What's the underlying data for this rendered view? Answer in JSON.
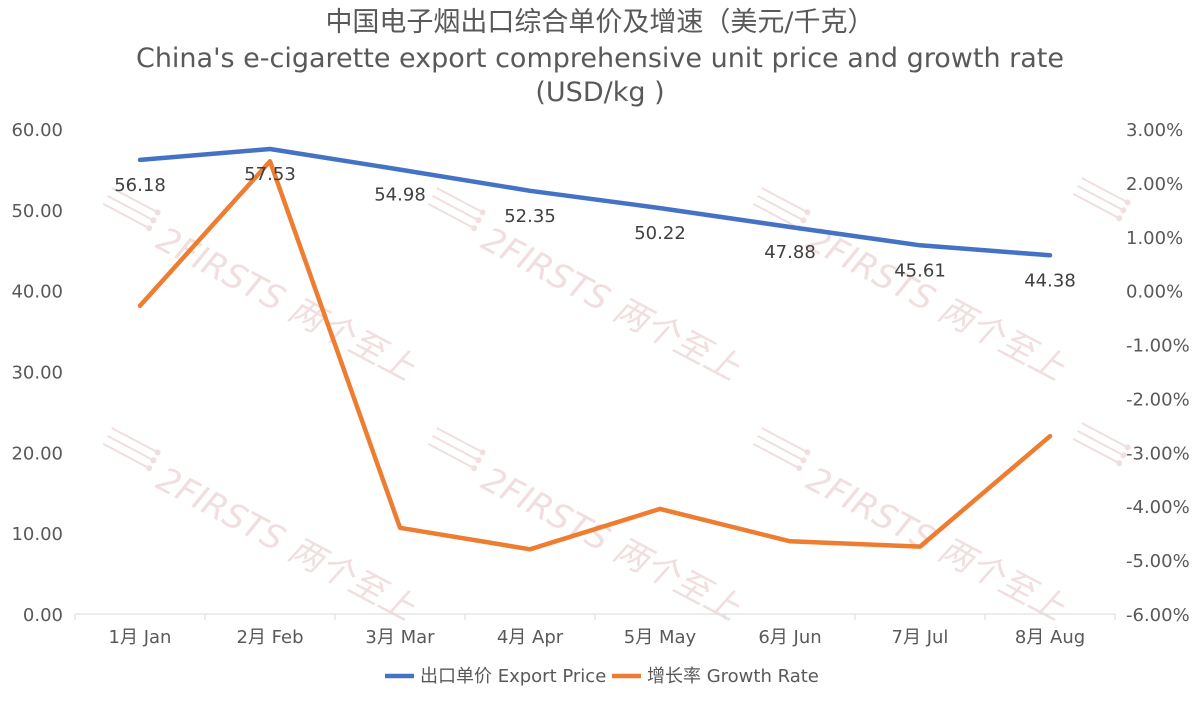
{
  "chart_data": {
    "type": "line",
    "title_cn": "中国电子烟出口综合单价及增速（美元/千克）",
    "title_en": "China's e-cigarette export comprehensive unit price and growth rate",
    "title_unit": "(USD/kg )",
    "categories": [
      "1月 Jan",
      "2月 Feb",
      "3月 Mar",
      "4月 Apr",
      "5月 May",
      "6月 Jun",
      "7月 Jul",
      "8月 Aug"
    ],
    "series": [
      {
        "name": "出口单价 Export Price",
        "axis": "left",
        "color": "#4472C4",
        "values": [
          56.18,
          57.53,
          54.98,
          52.35,
          50.22,
          47.88,
          45.61,
          44.38
        ],
        "labels": [
          "56.18",
          "57.53",
          "54.98",
          "52.35",
          "50.22",
          "47.88",
          "45.61",
          "44.38"
        ]
      },
      {
        "name": "增长率 Growth Rate",
        "axis": "right",
        "color": "#ED7D31",
        "values": [
          -0.28,
          2.4,
          -4.4,
          -4.8,
          -4.05,
          -4.65,
          -4.75,
          -2.7
        ]
      }
    ],
    "y_left": {
      "range": [
        0,
        60
      ],
      "ticks": [
        0,
        10,
        20,
        30,
        40,
        50,
        60
      ],
      "tick_labels": [
        "0.00",
        "10.00",
        "20.00",
        "30.00",
        "40.00",
        "50.00",
        "60.00"
      ]
    },
    "y_right": {
      "range": [
        -6,
        3
      ],
      "ticks": [
        -6,
        -5,
        -4,
        -3,
        -2,
        -1,
        0,
        1,
        2,
        3
      ],
      "tick_labels": [
        "-6.00%",
        "-5.00%",
        "-4.00%",
        "-3.00%",
        "-2.00%",
        "-1.00%",
        "0.00%",
        "1.00%",
        "2.00%",
        "3.00%"
      ]
    },
    "grid": false,
    "legend": "bottom",
    "watermark_text": "2FIRSTS 两个至上"
  }
}
